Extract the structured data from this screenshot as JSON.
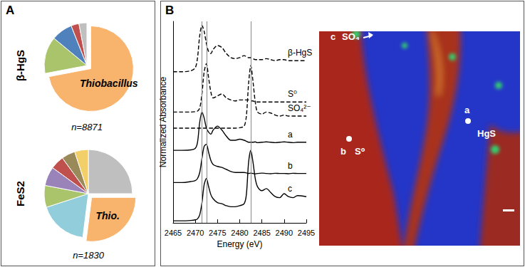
{
  "chart_data": [
    {
      "type": "pie",
      "title": "β-HgS",
      "subtitle": "n=8871",
      "categories": [
        "Thiobacillus",
        null,
        null,
        null,
        null
      ],
      "values": [
        72,
        14,
        8,
        3,
        3
      ],
      "colors": [
        "#F8B36C",
        "#A9C46B",
        "#4F81BD",
        "#C0504D",
        "#BFBFBF"
      ]
    },
    {
      "type": "pie",
      "title": "FeS2",
      "subtitle": "n=1830",
      "categories": [
        null,
        "Thio.",
        null,
        null,
        null,
        null,
        null,
        null
      ],
      "values": [
        25,
        27,
        18,
        8,
        7,
        5,
        5,
        5
      ],
      "colors": [
        "#BFBFBF",
        "#F8B36C",
        "#92CDDC",
        "#A9C46B",
        "#9983B8",
        "#C0504D",
        "#9A8A5A",
        "#F3CF6A"
      ]
    },
    {
      "type": "line",
      "x_label": "Energy (eV)",
      "y_label": "Normalized Absorbance",
      "x": [
        2465,
        2467,
        2469,
        2470,
        2470.5,
        2471,
        2471.5,
        2472,
        2472.5,
        2473,
        2473.5,
        2474,
        2475,
        2476,
        2477,
        2478,
        2479,
        2480,
        2481,
        2481.5,
        2482,
        2482.5,
        2483,
        2483.5,
        2484,
        2485,
        2486,
        2487,
        2488,
        2489,
        2490,
        2491,
        2492,
        2493,
        2495
      ],
      "series": [
        {
          "name": "β-HgS",
          "color": "#000000",
          "line_style": "dashed",
          "values": [
            7.5,
            7.5,
            7.55,
            7.7,
            8.2,
            9.3,
            9.8,
            9.5,
            8.9,
            8.5,
            8.4,
            8.6,
            8.8,
            8.7,
            8.4,
            8.2,
            8.15,
            8.2,
            8.3,
            8.25,
            8.2,
            8.2,
            8.15,
            8.1,
            8.1,
            8.1,
            8.15,
            8.1,
            8.05,
            8.1,
            8.1,
            8.05,
            8.05,
            8.05,
            8.05
          ]
        },
        {
          "name": "S⁰",
          "color": "#000000",
          "line_style": "dashed",
          "values": [
            5.5,
            5.5,
            5.5,
            5.52,
            5.55,
            5.7,
            6.4,
            7.5,
            7.9,
            7.2,
            6.5,
            6.2,
            6.3,
            6.4,
            6.2,
            6.1,
            6.05,
            6.1,
            6.1,
            6.1,
            6.1,
            6.05,
            6.05,
            6.0,
            6.0,
            6.0,
            6.0,
            6.0,
            6.0,
            6.0,
            6.0,
            6.0,
            6.0,
            6.0,
            6.0
          ]
        },
        {
          "name": "SO₄²⁻",
          "color": "#000000",
          "line_style": "dashed",
          "values": [
            4.7,
            4.7,
            4.7,
            4.7,
            4.7,
            4.7,
            4.7,
            4.7,
            4.7,
            4.7,
            4.7,
            4.7,
            4.7,
            4.7,
            4.7,
            4.7,
            4.7,
            4.72,
            4.8,
            5.3,
            6.9,
            7.8,
            7.0,
            6.0,
            5.5,
            5.4,
            5.5,
            5.45,
            5.35,
            5.3,
            5.35,
            5.3,
            5.3,
            5.3,
            5.3
          ]
        },
        {
          "name": "a",
          "color": "#000000",
          "line_style": "solid",
          "values": [
            3.6,
            3.6,
            3.62,
            3.7,
            4.0,
            5.0,
            5.5,
            5.2,
            4.7,
            4.5,
            4.4,
            4.6,
            4.8,
            4.6,
            4.3,
            4.1,
            4.1,
            4.15,
            4.1,
            4.05,
            4.0,
            4.0,
            4.0,
            4.02,
            3.98,
            4.0,
            4.02,
            4.0,
            3.98,
            4.0,
            4.02,
            4.0,
            3.98,
            4.0,
            4.0
          ]
        },
        {
          "name": "b",
          "color": "#000000",
          "line_style": "solid",
          "values": [
            2.0,
            2.0,
            2.05,
            2.1,
            2.2,
            2.5,
            3.2,
            3.8,
            3.9,
            3.5,
            3.1,
            2.9,
            2.8,
            2.75,
            2.65,
            2.55,
            2.5,
            2.5,
            2.5,
            2.48,
            2.45,
            2.47,
            2.45,
            2.43,
            2.45,
            2.47,
            2.45,
            2.44,
            2.46,
            2.45,
            2.45,
            2.44,
            2.46,
            2.45,
            2.45
          ]
        },
        {
          "name": "c",
          "color": "#000000",
          "line_style": "solid",
          "values": [
            0.1,
            0.1,
            0.12,
            0.15,
            0.2,
            0.4,
            1.0,
            1.9,
            2.2,
            1.8,
            1.4,
            1.2,
            1.0,
            0.95,
            0.85,
            0.8,
            0.8,
            0.85,
            0.95,
            1.4,
            3.0,
            3.6,
            3.0,
            2.2,
            1.8,
            1.6,
            1.7,
            1.5,
            1.3,
            1.25,
            1.45,
            1.3,
            1.25,
            1.35,
            1.3
          ]
        }
      ],
      "xlim": [
        2465,
        2495
      ],
      "xticks": [
        2465,
        2470,
        2475,
        2480,
        2485,
        2490,
        2495
      ],
      "ylim": [
        0,
        10
      ],
      "tick_labels": "x",
      "grid": false,
      "vertical_lines": [
        2471.5,
        2472.5,
        2482.5
      ]
    }
  ],
  "panels": [
    "A",
    "B"
  ],
  "map": {
    "labels": [
      {
        "id": "a",
        "text": "HgS"
      },
      {
        "id": "b",
        "text": "S⁰"
      },
      {
        "id": "c",
        "text": "SO₄"
      }
    ]
  }
}
